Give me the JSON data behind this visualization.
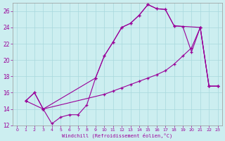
{
  "xlabel": "Windchill (Refroidissement éolien,°C)",
  "bg_color": "#cceef0",
  "grid_color": "#a8d8dc",
  "line_color": "#990099",
  "xlim": [
    -0.5,
    23.5
  ],
  "ylim": [
    12,
    27
  ],
  "xticks": [
    0,
    1,
    2,
    3,
    4,
    5,
    6,
    7,
    8,
    9,
    10,
    11,
    12,
    13,
    14,
    15,
    16,
    17,
    18,
    19,
    20,
    21,
    22,
    23
  ],
  "yticks": [
    12,
    14,
    16,
    18,
    20,
    22,
    24,
    26
  ],
  "line1_x": [
    1,
    2,
    3,
    4,
    5,
    6,
    7,
    8,
    9,
    10,
    11,
    12,
    13,
    14,
    15,
    16,
    17,
    18,
    19,
    20,
    21,
    22,
    23
  ],
  "line1_y": [
    15.0,
    16.0,
    14.0,
    12.2,
    13.0,
    13.3,
    13.3,
    14.5,
    17.8,
    20.5,
    22.2,
    24.0,
    24.5,
    25.5,
    26.8,
    26.3,
    26.2,
    24.2,
    24.1,
    21.0,
    24.0,
    16.8,
    16.8
  ],
  "line2_x": [
    1,
    2,
    3,
    9,
    10,
    11,
    12,
    13,
    14,
    15,
    16,
    17,
    18,
    21,
    22,
    23
  ],
  "line2_y": [
    15.0,
    16.0,
    14.0,
    17.8,
    20.5,
    22.2,
    24.0,
    24.5,
    25.5,
    26.8,
    26.3,
    26.2,
    24.2,
    24.0,
    16.8,
    16.8
  ],
  "line3_x": [
    1,
    3,
    10,
    11,
    12,
    13,
    14,
    15,
    16,
    17,
    18,
    19,
    20,
    21,
    22,
    23
  ],
  "line3_y": [
    15.0,
    14.0,
    15.8,
    16.2,
    16.6,
    17.0,
    17.4,
    17.8,
    18.2,
    18.7,
    19.5,
    20.5,
    21.5,
    24.0,
    16.8,
    16.8
  ]
}
